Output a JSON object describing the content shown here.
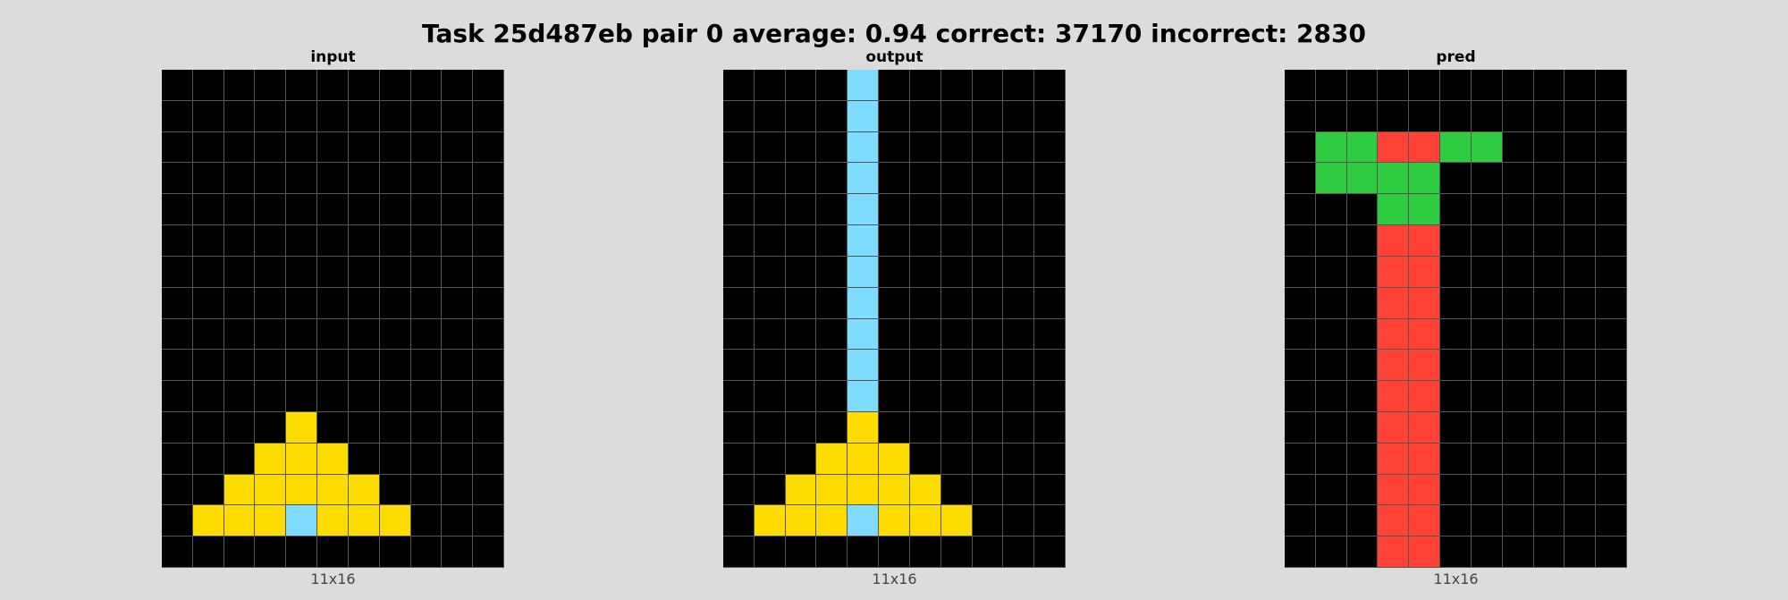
{
  "title": "Task 25d487eb pair 0 average: 0.94 correct: 37170 incorrect: 2830",
  "palette": {
    "0": "#000000",
    "2": "#ff4136",
    "3": "#2ecc40",
    "4": "#ffdc00",
    "8": "#7fdbff"
  },
  "panels": [
    {
      "label": "input",
      "size": "11x16",
      "grid": [
        [
          0,
          0,
          0,
          0,
          0,
          0,
          0,
          0,
          0,
          0,
          0
        ],
        [
          0,
          0,
          0,
          0,
          0,
          0,
          0,
          0,
          0,
          0,
          0
        ],
        [
          0,
          0,
          0,
          0,
          0,
          0,
          0,
          0,
          0,
          0,
          0
        ],
        [
          0,
          0,
          0,
          0,
          0,
          0,
          0,
          0,
          0,
          0,
          0
        ],
        [
          0,
          0,
          0,
          0,
          0,
          0,
          0,
          0,
          0,
          0,
          0
        ],
        [
          0,
          0,
          0,
          0,
          0,
          0,
          0,
          0,
          0,
          0,
          0
        ],
        [
          0,
          0,
          0,
          0,
          0,
          0,
          0,
          0,
          0,
          0,
          0
        ],
        [
          0,
          0,
          0,
          0,
          0,
          0,
          0,
          0,
          0,
          0,
          0
        ],
        [
          0,
          0,
          0,
          0,
          0,
          0,
          0,
          0,
          0,
          0,
          0
        ],
        [
          0,
          0,
          0,
          0,
          0,
          0,
          0,
          0,
          0,
          0,
          0
        ],
        [
          0,
          0,
          0,
          0,
          0,
          0,
          0,
          0,
          0,
          0,
          0
        ],
        [
          0,
          0,
          0,
          0,
          4,
          0,
          0,
          0,
          0,
          0,
          0
        ],
        [
          0,
          0,
          0,
          4,
          4,
          4,
          0,
          0,
          0,
          0,
          0
        ],
        [
          0,
          0,
          4,
          4,
          4,
          4,
          4,
          0,
          0,
          0,
          0
        ],
        [
          0,
          4,
          4,
          4,
          8,
          4,
          4,
          4,
          0,
          0,
          0
        ],
        [
          0,
          0,
          0,
          0,
          0,
          0,
          0,
          0,
          0,
          0,
          0
        ]
      ]
    },
    {
      "label": "output",
      "size": "11x16",
      "grid": [
        [
          0,
          0,
          0,
          0,
          8,
          0,
          0,
          0,
          0,
          0,
          0
        ],
        [
          0,
          0,
          0,
          0,
          8,
          0,
          0,
          0,
          0,
          0,
          0
        ],
        [
          0,
          0,
          0,
          0,
          8,
          0,
          0,
          0,
          0,
          0,
          0
        ],
        [
          0,
          0,
          0,
          0,
          8,
          0,
          0,
          0,
          0,
          0,
          0
        ],
        [
          0,
          0,
          0,
          0,
          8,
          0,
          0,
          0,
          0,
          0,
          0
        ],
        [
          0,
          0,
          0,
          0,
          8,
          0,
          0,
          0,
          0,
          0,
          0
        ],
        [
          0,
          0,
          0,
          0,
          8,
          0,
          0,
          0,
          0,
          0,
          0
        ],
        [
          0,
          0,
          0,
          0,
          8,
          0,
          0,
          0,
          0,
          0,
          0
        ],
        [
          0,
          0,
          0,
          0,
          8,
          0,
          0,
          0,
          0,
          0,
          0
        ],
        [
          0,
          0,
          0,
          0,
          8,
          0,
          0,
          0,
          0,
          0,
          0
        ],
        [
          0,
          0,
          0,
          0,
          8,
          0,
          0,
          0,
          0,
          0,
          0
        ],
        [
          0,
          0,
          0,
          0,
          4,
          0,
          0,
          0,
          0,
          0,
          0
        ],
        [
          0,
          0,
          0,
          4,
          4,
          4,
          0,
          0,
          0,
          0,
          0
        ],
        [
          0,
          0,
          4,
          4,
          4,
          4,
          4,
          0,
          0,
          0,
          0
        ],
        [
          0,
          4,
          4,
          4,
          8,
          4,
          4,
          4,
          0,
          0,
          0
        ],
        [
          0,
          0,
          0,
          0,
          0,
          0,
          0,
          0,
          0,
          0,
          0
        ]
      ]
    },
    {
      "label": "pred",
      "size": "11x16",
      "grid": [
        [
          0,
          0,
          0,
          0,
          0,
          0,
          0,
          0,
          0,
          0,
          0
        ],
        [
          0,
          0,
          0,
          0,
          0,
          0,
          0,
          0,
          0,
          0,
          0
        ],
        [
          0,
          3,
          3,
          2,
          2,
          3,
          3,
          0,
          0,
          0,
          0
        ],
        [
          0,
          3,
          3,
          3,
          3,
          0,
          0,
          0,
          0,
          0,
          0
        ],
        [
          0,
          0,
          0,
          3,
          3,
          0,
          0,
          0,
          0,
          0,
          0
        ],
        [
          0,
          0,
          0,
          2,
          2,
          0,
          0,
          0,
          0,
          0,
          0
        ],
        [
          0,
          0,
          0,
          2,
          2,
          0,
          0,
          0,
          0,
          0,
          0
        ],
        [
          0,
          0,
          0,
          2,
          2,
          0,
          0,
          0,
          0,
          0,
          0
        ],
        [
          0,
          0,
          0,
          2,
          2,
          0,
          0,
          0,
          0,
          0,
          0
        ],
        [
          0,
          0,
          0,
          2,
          2,
          0,
          0,
          0,
          0,
          0,
          0
        ],
        [
          0,
          0,
          0,
          2,
          2,
          0,
          0,
          0,
          0,
          0,
          0
        ],
        [
          0,
          0,
          0,
          2,
          2,
          0,
          0,
          0,
          0,
          0,
          0
        ],
        [
          0,
          0,
          0,
          2,
          2,
          0,
          0,
          0,
          0,
          0,
          0
        ],
        [
          0,
          0,
          0,
          2,
          2,
          0,
          0,
          0,
          0,
          0,
          0
        ],
        [
          0,
          0,
          0,
          2,
          2,
          0,
          0,
          0,
          0,
          0,
          0
        ],
        [
          0,
          0,
          0,
          2,
          2,
          0,
          0,
          0,
          0,
          0,
          0
        ]
      ]
    }
  ]
}
